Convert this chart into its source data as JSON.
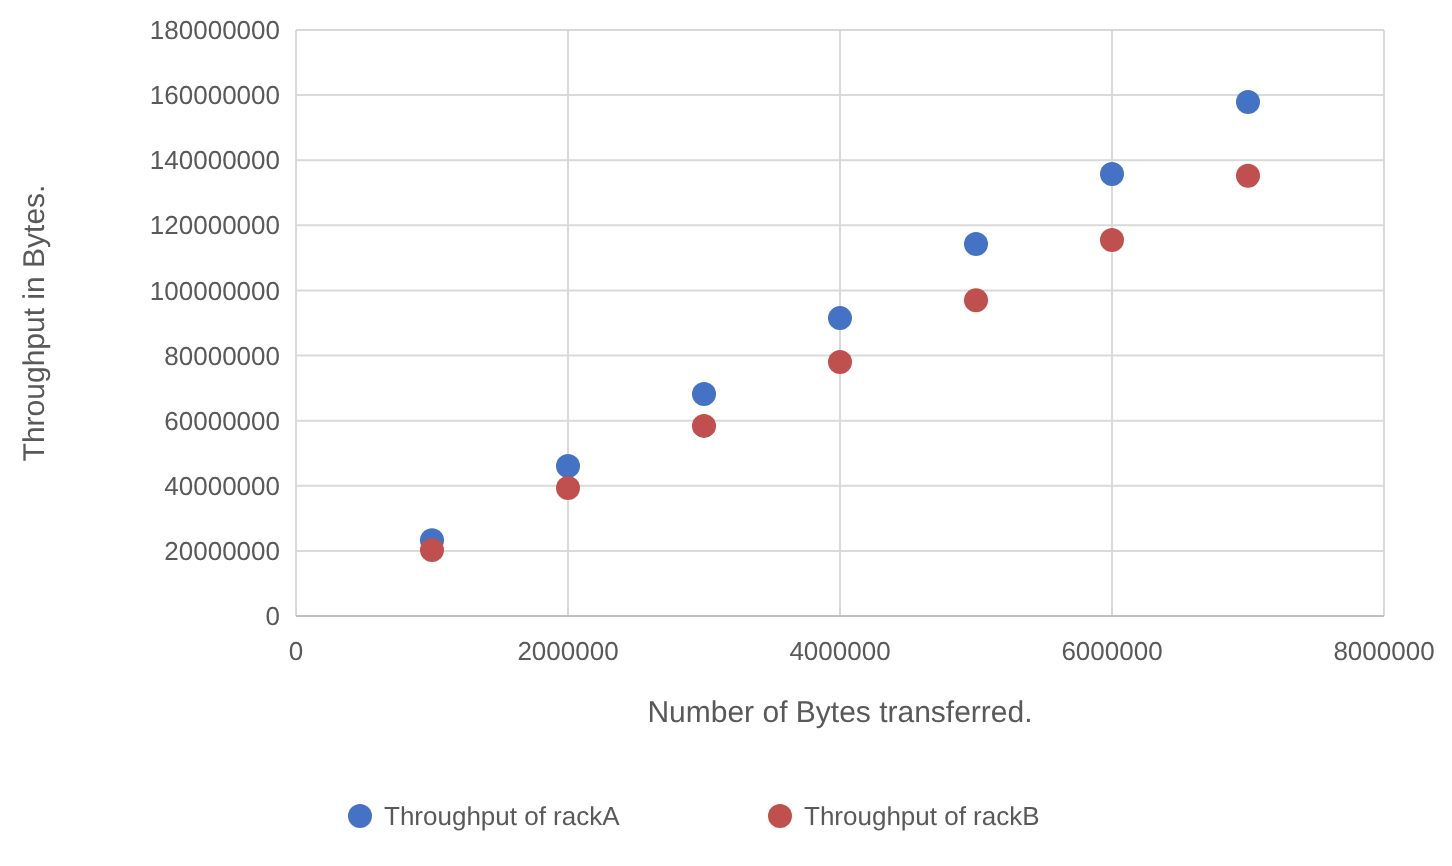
{
  "chart_data": {
    "type": "scatter",
    "xlabel": "Number of Bytes transferred.",
    "ylabel": "Throughput in Bytes.",
    "x": [
      1000000,
      2000000,
      3000000,
      4000000,
      5000000,
      6000000,
      7000000
    ],
    "series": [
      {
        "name": "Throughput of rackA",
        "color": "#4472c4",
        "values": [
          23300000,
          46100000,
          68200000,
          91500000,
          114300000,
          135800000,
          157900000
        ]
      },
      {
        "name": "Throughput of rackB",
        "color": "#c0504d",
        "values": [
          20300000,
          39300000,
          58400000,
          78000000,
          97000000,
          115500000,
          135200000
        ]
      }
    ],
    "xlim": [
      0,
      8000000
    ],
    "xticks": [
      0,
      2000000,
      4000000,
      6000000,
      8000000
    ],
    "ylim": [
      0,
      180000000
    ],
    "yticks": [
      0,
      20000000,
      40000000,
      60000000,
      80000000,
      100000000,
      120000000,
      140000000,
      160000000,
      180000000
    ],
    "grid": true,
    "legend": "bottom",
    "marker": "circle"
  }
}
